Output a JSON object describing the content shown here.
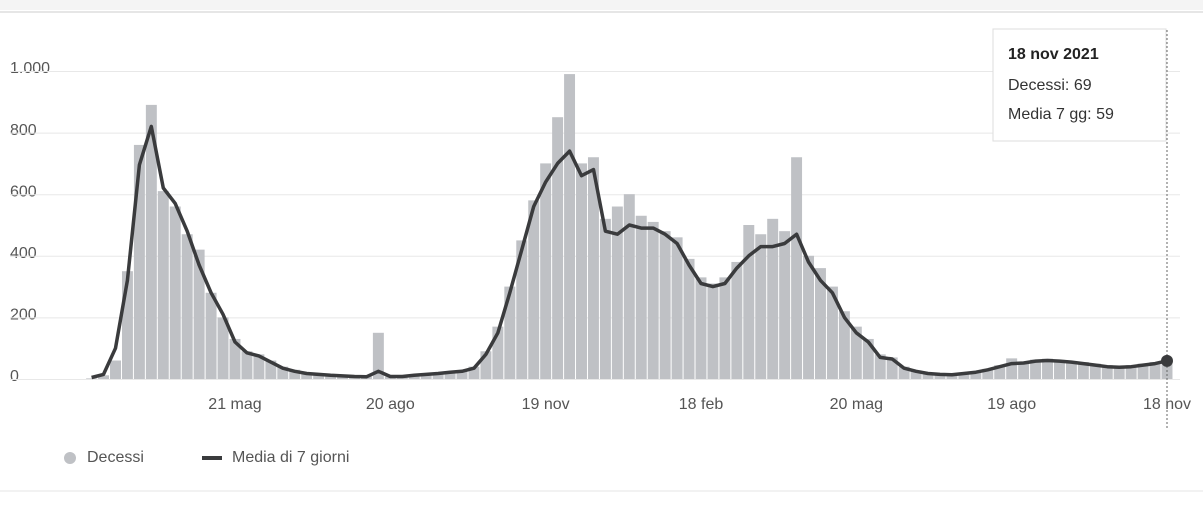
{
  "chart_data": {
    "type": "bar-line",
    "categories": [
      null,
      null,
      null,
      null,
      null,
      null,
      null,
      null,
      null,
      null,
      null,
      null,
      "21 mag",
      null,
      null,
      null,
      null,
      null,
      null,
      null,
      null,
      null,
      null,
      null,
      null,
      "20 ago",
      null,
      null,
      null,
      null,
      null,
      null,
      null,
      null,
      null,
      null,
      null,
      null,
      "19 nov",
      null,
      null,
      null,
      null,
      null,
      null,
      null,
      null,
      null,
      null,
      null,
      null,
      "18 feb",
      null,
      null,
      null,
      null,
      null,
      null,
      null,
      null,
      null,
      null,
      null,
      null,
      "20 mag",
      null,
      null,
      null,
      null,
      null,
      null,
      null,
      null,
      null,
      null,
      null,
      null,
      "19 ago",
      null,
      null,
      null,
      null,
      null,
      null,
      null,
      null,
      null,
      null,
      null,
      null,
      "18 nov"
    ],
    "series": [
      {
        "name": "Decessi",
        "color": "#bfc1c5",
        "values": [
          2,
          12,
          60,
          350,
          760,
          890,
          610,
          560,
          470,
          420,
          280,
          200,
          130,
          90,
          80,
          60,
          40,
          30,
          20,
          15,
          12,
          10,
          9,
          8,
          150,
          8,
          10,
          13,
          16,
          20,
          24,
          27,
          40,
          90,
          170,
          300,
          450,
          580,
          700,
          850,
          990,
          700,
          720,
          520,
          560,
          600,
          530,
          510,
          480,
          460,
          390,
          330,
          310,
          330,
          380,
          500,
          470,
          520,
          480,
          720,
          400,
          360,
          300,
          220,
          170,
          130,
          80,
          70,
          40,
          28,
          20,
          16,
          15,
          20,
          25,
          33,
          45,
          67,
          55,
          63,
          66,
          62,
          58,
          55,
          50,
          45,
          42,
          45,
          50,
          55,
          69
        ]
      },
      {
        "name": "Media di 7 giorni",
        "color": "#3a3b3d",
        "values": [
          5,
          15,
          100,
          320,
          695,
          820,
          620,
          570,
          480,
          370,
          280,
          210,
          120,
          85,
          75,
          55,
          35,
          25,
          18,
          15,
          12,
          10,
          8,
          7,
          25,
          8,
          8,
          12,
          15,
          18,
          22,
          25,
          35,
          80,
          150,
          280,
          420,
          560,
          640,
          700,
          740,
          660,
          680,
          480,
          470,
          500,
          490,
          490,
          470,
          440,
          370,
          310,
          300,
          310,
          360,
          400,
          430,
          430,
          440,
          470,
          380,
          320,
          280,
          200,
          150,
          120,
          70,
          65,
          35,
          25,
          18,
          15,
          14,
          18,
          22,
          30,
          40,
          50,
          52,
          58,
          60,
          58,
          55,
          50,
          45,
          40,
          38,
          40,
          45,
          50,
          59
        ]
      }
    ],
    "ylim": [
      0,
      1000
    ],
    "yticks": [
      0,
      200,
      400,
      600,
      800,
      {
        "value": 1000,
        "label": "1.000"
      }
    ],
    "grid": true,
    "tooltip": {
      "title": "18 nov 2021",
      "lines": [
        "Decessi:",
        "Media 7 gg:"
      ]
    }
  }
}
